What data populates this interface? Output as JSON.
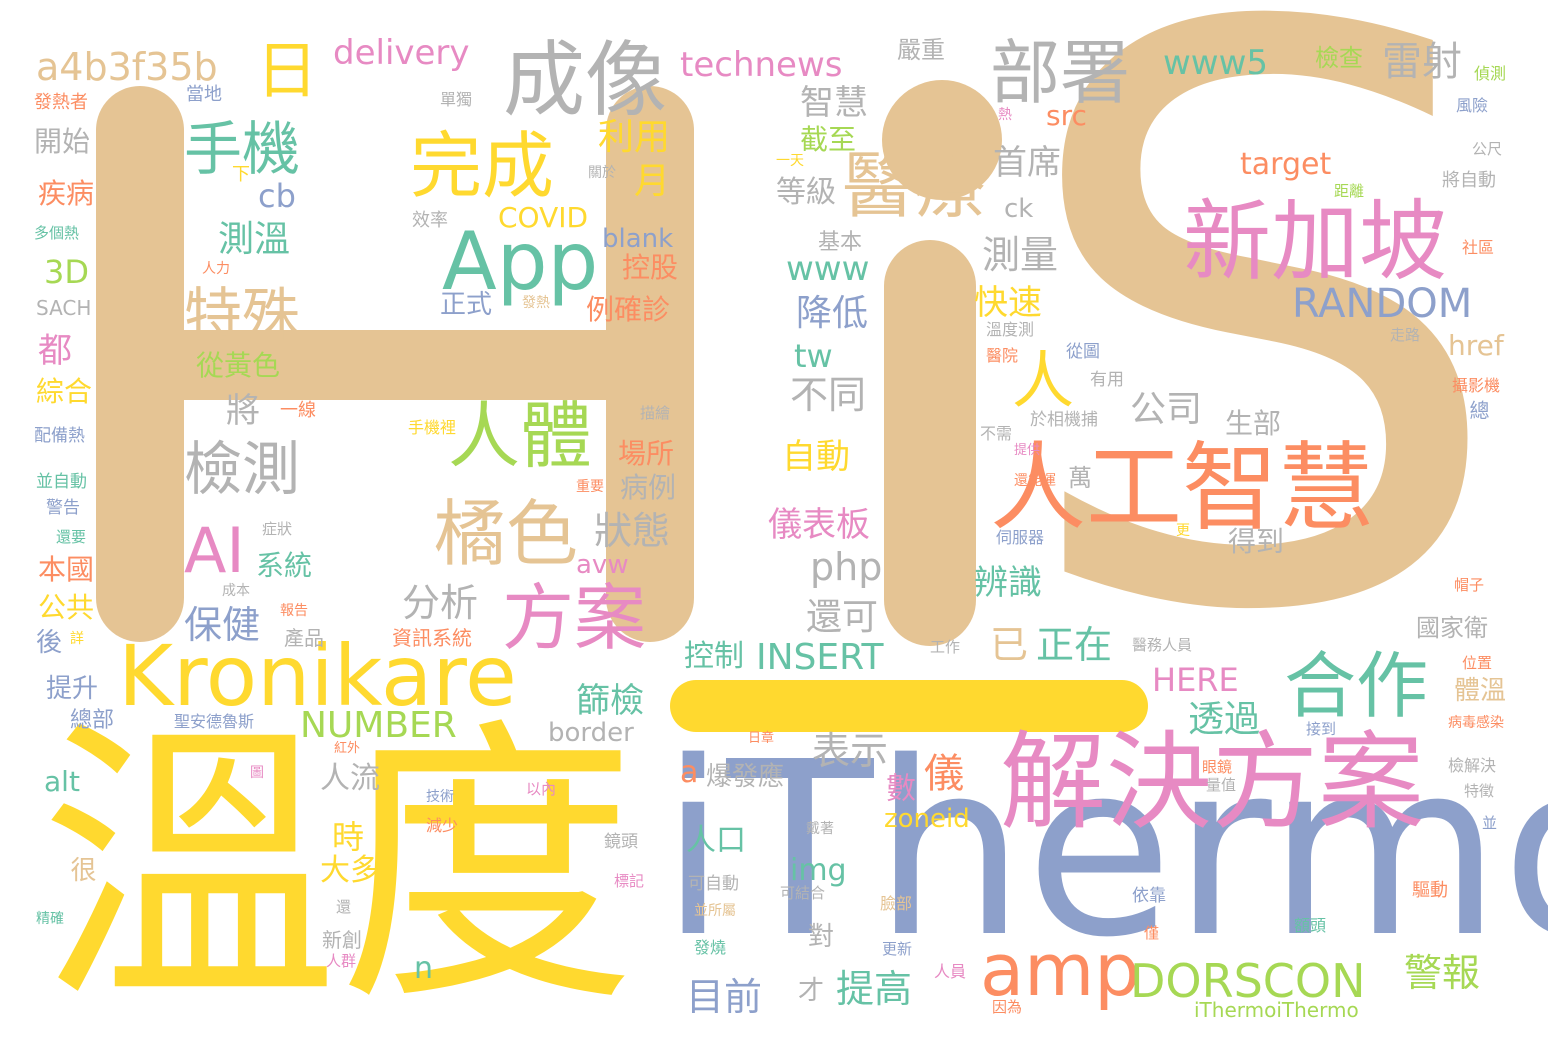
{
  "palette": {
    "tan": "#e5c494",
    "yellow": "#ffd92f",
    "slate": "#8da0cb",
    "pink": "#e78ac3",
    "green": "#66c2a5",
    "orange": "#fc8d62",
    "lime": "#a6d854",
    "gray": "#b3b3b3"
  },
  "words": {
    "h": "H",
    "i": "i",
    "s": "S",
    "dash": "—",
    "wendu": "溫度",
    "ithermo": "iThermo",
    "jiejuefangan": "解決方案",
    "rengongzhihui": "人工智慧",
    "xinjiapo": "新加坡",
    "kronikare": "Kronikare",
    "chengxiang": "成像",
    "buhu": "部署",
    "app": "App",
    "wancheng": "完成",
    "yiliao": "醫療",
    "shouji": "手機",
    "teshu": "特殊",
    "jiance": "檢測",
    "renti": "人體",
    "juse": "橘色",
    "fangan": "方案",
    "hezuo": "合作",
    "amp": "amp",
    "dorscon": "DORSCON",
    "random": "RANDOM",
    "ai": "AI",
    "ri": "日",
    "ren": "人",
    "a4b3f35b": "a4b3f35b",
    "delivery": "delivery",
    "technews": "technews",
    "www5": "www5",
    "leishe": "雷射",
    "jiancha": "檢查",
    "yanzhong": "嚴重",
    "zhihui": "智慧",
    "liyong": "利用",
    "yue": "月",
    "celiang": "測量",
    "shouxi": "首席",
    "cewen": "測溫",
    "cb": "cb",
    "covid": "COVID",
    "blank": "blank",
    "konggu": "控股",
    "www": "www",
    "jiangdi": "降低",
    "kuaisu": "快速",
    "tw": "tw",
    "butong": "不同",
    "gongsi": "公司",
    "shengbu": "生部",
    "zidong": "自動",
    "yibiaoban": "儀表板",
    "bianshi": "辨識",
    "php": "php",
    "huanke": "還可",
    "fenxi": "分析",
    "zhuangtai": "狀態",
    "changsuo": "場所",
    "bingli": "病例",
    "baojian": "保健",
    "xitong": "系統",
    "avw": "avw",
    "insert": "INSERT",
    "kongzhi": "控制",
    "number": "NUMBER",
    "shaijian": "篩檢",
    "border": "border",
    "here": "HERE",
    "toutuo": "透過",
    "biaoshi": "表示",
    "yi": "儀",
    "shu": "數",
    "zoneid": "zoneid",
    "img": "img",
    "renkou": "人口",
    "mubiao": "目前",
    "tigao": "提高",
    "jingbao": "警報",
    "zhengzai": "正在",
    "yi2": "已",
    "3d": "3D",
    "dou": "都",
    "zonghe": "綜合",
    "gonggong": "公共",
    "benguo": "本國",
    "kaishi": "開始",
    "jibing": "疾病",
    "tisheng": "提升",
    "zongbu": "總部",
    "alt": "alt",
    "hen": "很",
    "shi": "時",
    "daduo": "大多",
    "renliu": "人流",
    "jiang": "將",
    "congmhuangse": "從黃色",
    "zhengshi": "正式",
    "liqueque": "例確診",
    "src": "src",
    "target": "target",
    "ck": "ck",
    "href": "href",
    "dengji": "等級",
    "jieshi": "截至",
    "jiben": "基本",
    "guojiawei": "國家衛",
    "tiwen": "體溫",
    "dedao": "得到",
    "wan": "萬",
    "a": "a",
    "n": "n",
    "baofayin": "爆發應",
    "ithermoithermo": "iThermoiThermo",
    "cai": "才",
    "dui": "對",
    "zhen": "偵測",
    "fengxian": "風險",
    "gongchi": "公尺",
    "jiangzidong": "將自動",
    "juli": "距離",
    "shequ": "社區",
    "zoulu": "走路",
    "youyong": "有用",
    "congtu": "從圖",
    "sheyingji": "攝影機",
    "zong": "總",
    "fareshe": "發熱者",
    "dangdi": "當地",
    "danduan": "單獨",
    "re": "熱",
    "yitian": "一天",
    "xia": "下",
    "guanyu": "關於",
    "xiaolv": "效率",
    "duoge": "多個熱",
    "renli": "人力",
    "sach": "SACH",
    "fare": "發熱",
    "wenduce": "溫度測",
    "yiyuan": "醫院",
    "buxu": "不需",
    "yuxiangji": "於相機捕",
    "tigong": "提供",
    "yixian": "一線",
    "peibeire": "配備熱",
    "bingzidong": "並自動",
    "jinggao": "警告",
    "haiyao": "還要",
    "zhengzhuang": "症狀",
    "chengben": "成本",
    "baogao": "報告",
    "chanpin": "產品",
    "zixun": "資訊系統",
    "shoujili": "手機裡",
    "miaohui": "描繪",
    "zhongyao": "重要",
    "huanneng": "還能運",
    "sifuqi": "伺服器",
    "geng": "更",
    "maozi": "帽子",
    "weizhi": "位置",
    "bingdu": "病毒感染",
    "jianjiejue": "檢解決",
    "tezheng": "特徵",
    "bing": "並",
    "yiwurenyuan": "醫務人員",
    "jiedao": "接到",
    "yanjing": "眼鏡",
    "liangzhi": "量值",
    "rizhang": "日章",
    "hongwai": "紅外",
    "shenganteluosi": "聖安德魯斯",
    "sui": "詳",
    "hou": "後",
    "yinei": "以內",
    "jishu": "技術",
    "tu": "圖",
    "jianshao": "減少",
    "jingtou": "鏡頭",
    "biaoji": "標記",
    "kezidong": "可自動",
    "bingsuoxu": "並所屬",
    "kejiehe": "可結合",
    "lianbu": "臉部",
    "daizhe": "戴著",
    "geng2": "更新",
    "renyuan": "人員",
    "yinwei": "因為",
    "fashao": "發燒",
    "yikao": "依靠",
    "jin": "僅",
    "qudong": "驅動",
    "shuotou": "額頭",
    "jingque": "精確",
    "huan": "還",
    "xinchuang": "新創",
    "renqun": "人群",
    "gongzuo": "工作",
    "gong": "醫"
  }
}
